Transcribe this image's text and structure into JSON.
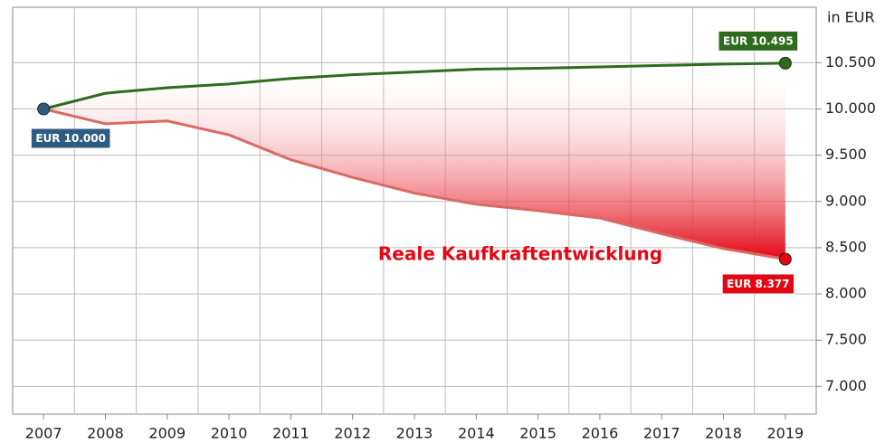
{
  "chart_data": {
    "type": "line",
    "y_axis_label": "in EUR",
    "categories": [
      "2007",
      "2008",
      "2009",
      "2010",
      "2011",
      "2012",
      "2013",
      "2014",
      "2015",
      "2016",
      "2017",
      "2018",
      "2019"
    ],
    "series": [
      {
        "color": "#2e6b1f",
        "values": [
          10000,
          10170,
          10230,
          10270,
          10330,
          10370,
          10400,
          10430,
          10440,
          10455,
          10470,
          10485,
          10495
        ],
        "end_label": "EUR 10.495"
      },
      {
        "name": "Reale Kaufkraftentwicklung",
        "color": "#e30613",
        "line_color": "#d96a63",
        "values": [
          10000,
          9840,
          9870,
          9720,
          9450,
          9260,
          9090,
          8970,
          8900,
          8820,
          8650,
          8490,
          8377
        ],
        "end_label": "EUR 8.377"
      }
    ],
    "start_label": "EUR 10.000",
    "start_color": "#2f5d80",
    "ylim": [
      6700,
      11100
    ],
    "yticks": [
      {
        "value": 7000,
        "label": "7.000"
      },
      {
        "value": 7500,
        "label": "7.500"
      },
      {
        "value": 8000,
        "label": "8.000"
      },
      {
        "value": 8500,
        "label": "8.500"
      },
      {
        "value": 9000,
        "label": "9.000"
      },
      {
        "value": 9500,
        "label": "9.500"
      },
      {
        "value": 10000,
        "label": "10.000"
      },
      {
        "value": 10500,
        "label": "10.500"
      }
    ],
    "grid": true
  }
}
